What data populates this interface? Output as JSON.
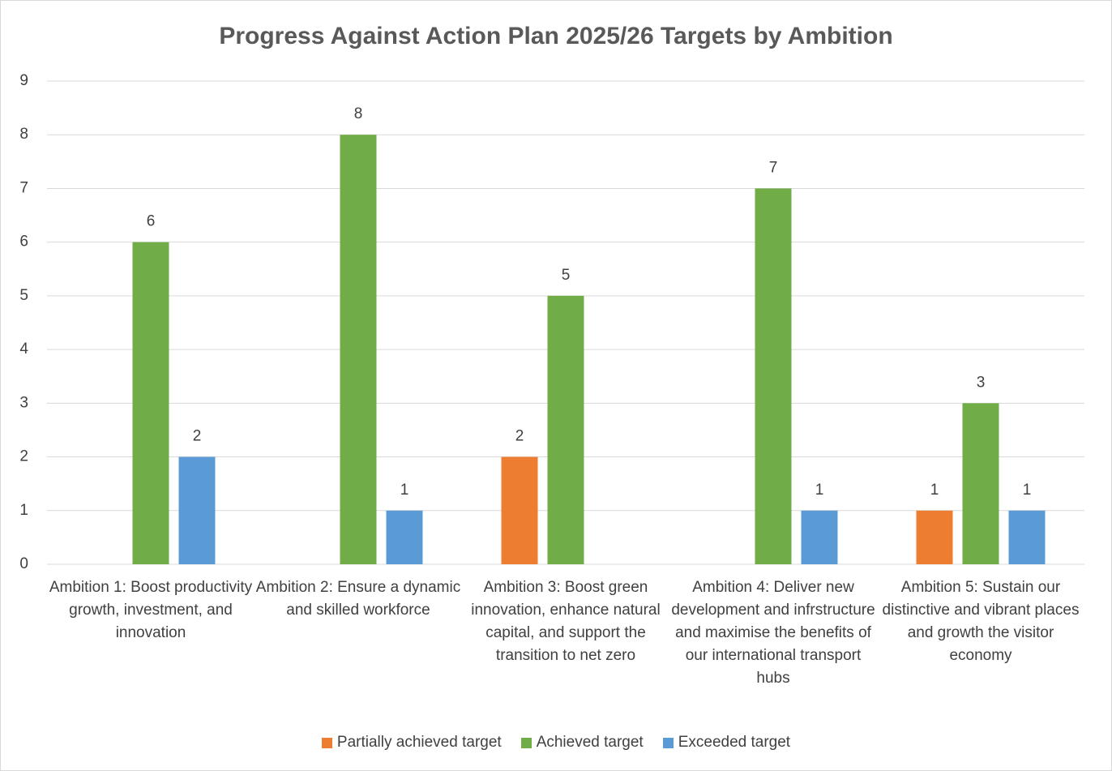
{
  "chart_data": {
    "type": "bar",
    "title": "Progress Against Action Plan 2025/26 Targets by Ambition",
    "categories": [
      "Ambition 1: Boost productivity growth, investment, and innovation",
      "Ambition 2: Ensure a dynamic and skilled workforce",
      "Ambition 3: Boost green innovation, enhance natural capital, and support the transition to net zero",
      "Ambition 4: Deliver new development and infrstructure and maximise the benefits of our international transport hubs",
      "Ambition 5: Sustain our distinctive and vibrant places and growth the visitor economy"
    ],
    "series": [
      {
        "name": "Partially achieved target",
        "color": "#ed7d31",
        "values": [
          null,
          null,
          2,
          null,
          1
        ]
      },
      {
        "name": "Achieved target",
        "color": "#70ad47",
        "values": [
          6,
          8,
          5,
          7,
          3
        ]
      },
      {
        "name": "Exceeded target",
        "color": "#5b9bd5",
        "values": [
          2,
          1,
          null,
          1,
          1
        ]
      }
    ],
    "ylim": [
      0,
      9
    ],
    "yticks": [
      0,
      1,
      2,
      3,
      4,
      5,
      6,
      7,
      8,
      9
    ],
    "grid": true,
    "legend": "bottom"
  }
}
